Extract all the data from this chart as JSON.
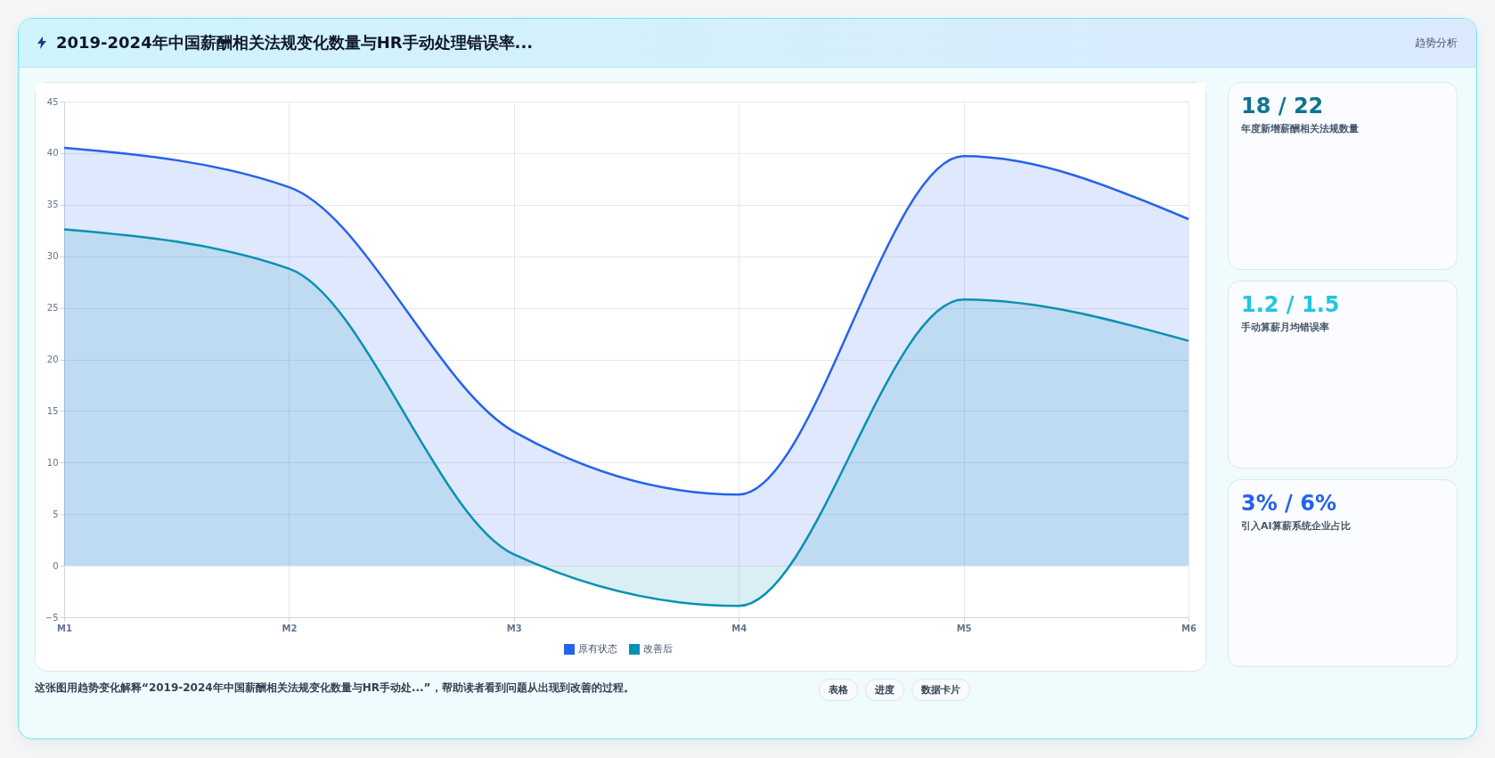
{
  "chart_data": [
    {
      "type": "area",
      "title": "2019-2024年中国薪酬相关法规变化数量与HR手动处理错误率...",
      "categories": [
        "M1",
        "M2",
        "M3",
        "M4",
        "M5",
        "M6"
      ],
      "series": [
        {
          "name": "原有状态",
          "color": "#2563eb",
          "values": [
            40.5,
            36.7,
            13,
            6.9,
            39.7,
            33.6
          ]
        },
        {
          "name": "改善后",
          "color": "#0891b2",
          "values": [
            32.6,
            28.8,
            1.1,
            -3.9,
            25.8,
            21.8
          ]
        }
      ],
      "ylim": [
        -5,
        45
      ],
      "yticks": [
        -5,
        0,
        5,
        10,
        15,
        20,
        25,
        30,
        35,
        40,
        45
      ],
      "grid": true,
      "legend": "bottom",
      "annotations": [
        "这张图用趋势变化解释“2019-2024年中国薪酬相关法规变化数量与HR手动处...”，帮助读者看到问题从出现到改善的过程。",
        "表格",
        "进度",
        "数据卡片"
      ]
    },
    {
      "type": "other",
      "title": "趋势分析",
      "annotations": [
        "18 / 22",
        "年度新增薪酬相关法规数量",
        "1.2 / 1.5",
        "手动算薪月均错误率",
        "3% / 6%",
        "引入AI算薪系统企业占比"
      ]
    }
  ]
}
